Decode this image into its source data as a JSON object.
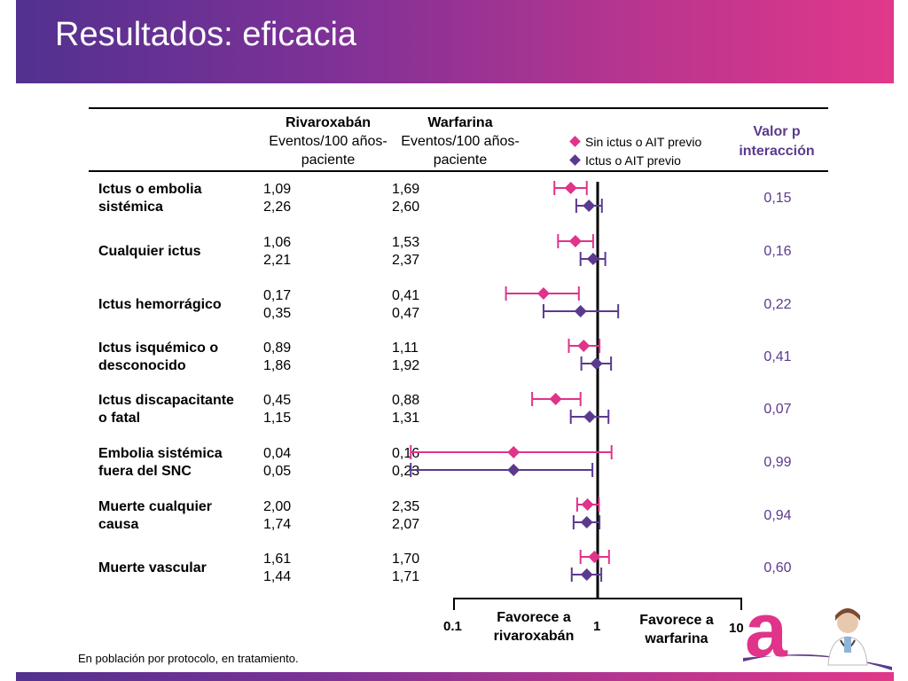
{
  "title": "Resultados: eficacia",
  "columns": {
    "rivaroxaban": {
      "name": "Rivaroxabán",
      "line1": "Eventos/100 años-",
      "line2": "paciente"
    },
    "warfarin": {
      "name": "Warfarina",
      "line1": "Eventos/100 años-",
      "line2": "paciente"
    },
    "pvalue": {
      "line1": "Valor p",
      "line2": "interacción"
    }
  },
  "legend": [
    {
      "label": "Sin ictus o AIT previo",
      "color": "#e0338a"
    },
    {
      "label": "Ictus o AIT previo",
      "color": "#5b3a8e"
    }
  ],
  "rows": [
    {
      "label1": "Ictus o embolia",
      "label2": "sistémica",
      "riva": [
        "1,09",
        "2,26"
      ],
      "warf": [
        "1,69",
        "2,60"
      ],
      "p": "0,15"
    },
    {
      "label1": "Cualquier ictus",
      "label2": "",
      "riva": [
        "1,06",
        "2,21"
      ],
      "warf": [
        "1,53",
        "2,37"
      ],
      "p": "0,16"
    },
    {
      "label1": "Ictus hemorrágico",
      "label2": "",
      "riva": [
        "0,17",
        "0,35"
      ],
      "warf": [
        "0,41",
        "0,47"
      ],
      "p": "0,22"
    },
    {
      "label1": "Ictus isquémico o",
      "label2": "desconocido",
      "riva": [
        "0,89",
        "1,86"
      ],
      "warf": [
        "1,11",
        "1,92"
      ],
      "p": "0,41"
    },
    {
      "label1": "Ictus discapacitante",
      "label2": "o fatal",
      "riva": [
        "0,45",
        "1,15"
      ],
      "warf": [
        "0,88",
        "1,31"
      ],
      "p": "0,07"
    },
    {
      "label1": "Embolia sistémica",
      "label2": "fuera del SNC",
      "riva": [
        "0,04",
        "0,05"
      ],
      "warf": [
        "0,16",
        "0,23"
      ],
      "p": "0,99"
    },
    {
      "label1": "Muerte cualquier",
      "label2": "causa",
      "riva": [
        "2,00",
        "1,74"
      ],
      "warf": [
        "2,35",
        "2,07"
      ],
      "p": "0,94"
    },
    {
      "label1": "Muerte vascular",
      "label2": "",
      "riva": [
        "1,61",
        "1,44"
      ],
      "warf": [
        "1,70",
        "1,71"
      ],
      "p": "0,60"
    }
  ],
  "axis": {
    "ticks": [
      "0.1",
      "1",
      "10"
    ],
    "favors_left1": "Favorece a",
    "favors_left2": "rivaroxabán",
    "favors_right1": "Favorece a",
    "favors_right2": "warfarina"
  },
  "footnote": "En población por protocolo, en tratamiento.",
  "chart_data": {
    "type": "scatter",
    "subtype": "forest_plot",
    "scale": "log",
    "xlim": [
      0.1,
      10
    ],
    "reference_line": 1,
    "xtick_labels": [
      "0.1",
      "1",
      "10"
    ],
    "categories": [
      "Ictus o embolia sistémica",
      "Cualquier ictus",
      "Ictus hemorrágico",
      "Ictus isquémico o desconocido",
      "Ictus discapacitante o fatal",
      "Embolia sistémica fuera del SNC",
      "Muerte cualquier causa",
      "Muerte vascular"
    ],
    "series": [
      {
        "name": "Sin ictus o AIT previo",
        "color": "#e0338a",
        "hr": [
          0.65,
          0.7,
          0.42,
          0.8,
          0.51,
          0.26,
          0.85,
          0.95
        ],
        "lower": [
          0.5,
          0.53,
          0.23,
          0.63,
          0.35,
          0.05,
          0.72,
          0.76
        ],
        "upper": [
          0.84,
          0.93,
          0.74,
          1.03,
          0.76,
          1.25,
          1.02,
          1.2
        ]
      },
      {
        "name": "Ictus o AIT previo",
        "color": "#5b3a8e",
        "hr": [
          0.87,
          0.93,
          0.76,
          0.98,
          0.88,
          0.26,
          0.84,
          0.84
        ],
        "lower": [
          0.71,
          0.76,
          0.42,
          0.77,
          0.65,
          0.05,
          0.68,
          0.66
        ],
        "upper": [
          1.07,
          1.13,
          1.39,
          1.24,
          1.19,
          0.92,
          1.03,
          1.06
        ]
      }
    ]
  },
  "logo": {
    "letter": "a"
  }
}
